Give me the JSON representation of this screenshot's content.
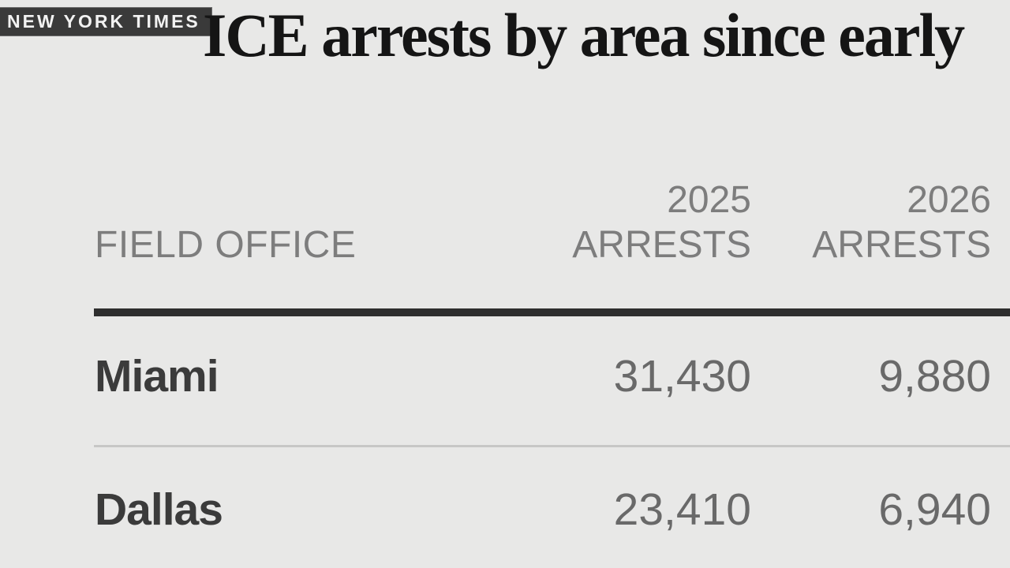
{
  "source_badge": {
    "label": "NEW YORK TIMES"
  },
  "title": "ICE arrests by area since early",
  "table": {
    "columns": [
      {
        "label": "FIELD OFFICE"
      },
      {
        "label_line1": "2025",
        "label_line2": "ARRESTS"
      },
      {
        "label_line1": "2026",
        "label_line2": "ARRESTS"
      }
    ],
    "rows": [
      {
        "office": "Miami",
        "arrests_2025": "31,430",
        "arrests_2026": "9,880"
      },
      {
        "office": "Dallas",
        "arrests_2025": "23,410",
        "arrests_2026": "6,940"
      }
    ]
  },
  "chart_data": {
    "type": "table",
    "title": "ICE arrests by area since early",
    "columns": [
      "FIELD OFFICE",
      "2025 ARRESTS",
      "2026 ARRESTS"
    ],
    "rows": [
      [
        "Miami",
        31430,
        9880
      ],
      [
        "Dallas",
        23410,
        6940
      ]
    ]
  },
  "colors": {
    "background": "#e8e8e7",
    "badge_background": "#3a3a3a",
    "badge_text": "#f2f2f2",
    "title_text": "#151515",
    "header_text": "#7d7d7d",
    "row_label_text": "#3b3b3b",
    "value_text": "#696969",
    "thick_rule": "#2e2e2e",
    "thin_rule": "#c7c7c6"
  }
}
